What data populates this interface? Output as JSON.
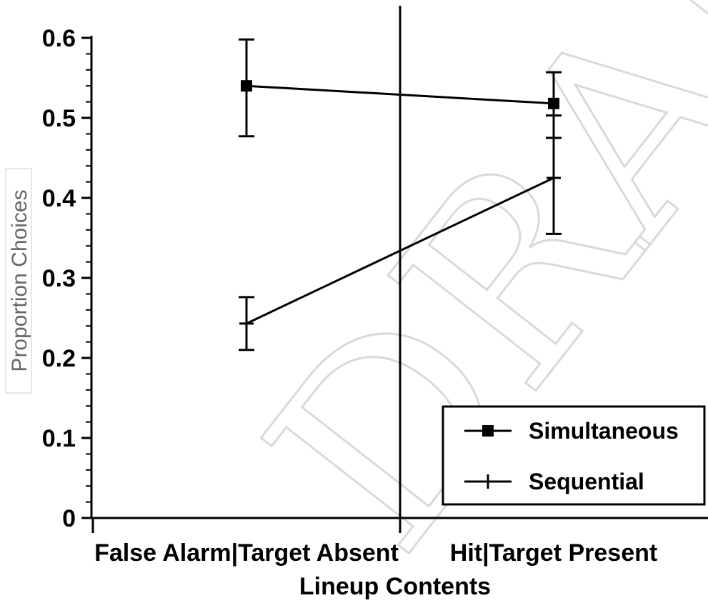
{
  "chart_data": {
    "type": "line",
    "categories": [
      "False Alarm|Target Absent",
      "Hit|Target Present"
    ],
    "xlabel": "Lineup Contents",
    "ylabel": "Proportion Choices",
    "ylim": [
      0,
      0.6
    ],
    "yticks": [
      "0",
      "0.1",
      "0.2",
      "0.3",
      "0.4",
      "0.5",
      "0.6"
    ],
    "series": [
      {
        "name": "Simultaneous",
        "marker": "square",
        "values": [
          0.54,
          0.518
        ],
        "err_low": [
          0.477,
          0.475
        ],
        "err_high": [
          0.598,
          0.557
        ]
      },
      {
        "name": "Sequential",
        "marker": "plus",
        "values": [
          0.243,
          0.425
        ],
        "err_low": [
          0.21,
          0.355
        ],
        "err_high": [
          0.276,
          0.503
        ]
      }
    ],
    "legend_position": "bottom-right",
    "grid": false,
    "watermark": "DRAFT"
  }
}
